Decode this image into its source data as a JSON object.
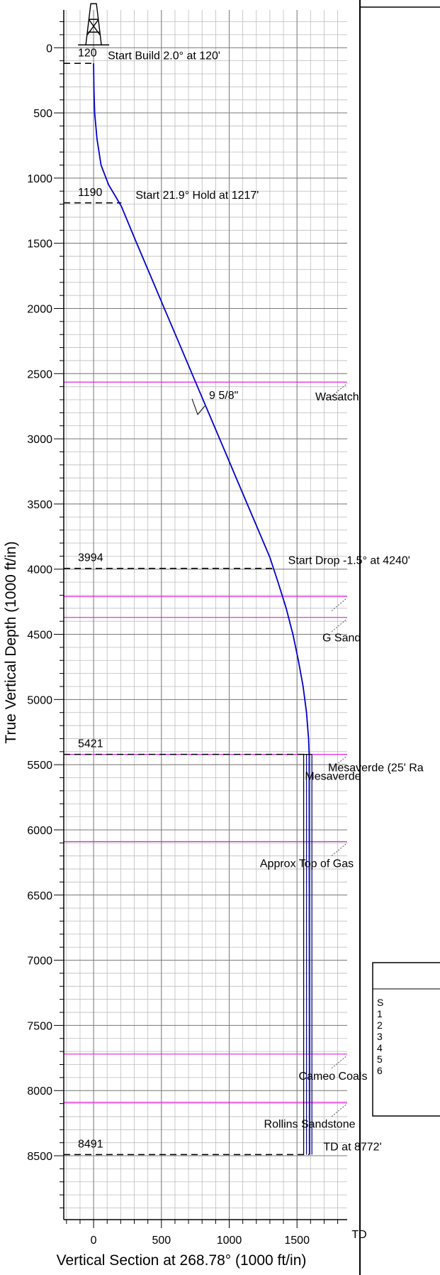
{
  "chart_data": {
    "type": "line",
    "title": "",
    "xlabel": "Vertical Section at 268.78° (1000 ft/in)",
    "ylabel": "True Vertical Depth (1000 ft/in)",
    "xlim": [
      -220,
      1870
    ],
    "ylim": [
      -290,
      8990
    ],
    "y_inverted": true,
    "grid": true,
    "x_ticks": [
      0,
      500,
      1000,
      1500
    ],
    "y_ticks": [
      0,
      500,
      1000,
      1500,
      2000,
      2500,
      3000,
      3500,
      4000,
      4500,
      5000,
      5500,
      6000,
      6500,
      7000,
      7500,
      8000,
      8500
    ],
    "well_path": {
      "color": "#0000cc",
      "vs": [
        0,
        2,
        8,
        25,
        55,
        110,
        205,
        310,
        420,
        530,
        640,
        750,
        860,
        970,
        1080,
        1190,
        1300,
        1360,
        1420,
        1470,
        1510,
        1545,
        1570,
        1585,
        1590,
        1592
      ],
      "tvd": [
        120,
        300,
        500,
        700,
        900,
        1050,
        1217,
        1480,
        1750,
        2020,
        2290,
        2560,
        2830,
        3100,
        3370,
        3640,
        3910,
        4100,
        4300,
        4500,
        4700,
        4900,
        5100,
        5300,
        5421,
        8491
      ]
    },
    "casing_lines": {
      "color": "#000080",
      "vs": [
        1570,
        1610
      ],
      "tvd_top": 5421,
      "tvd_bottom": 8491
    },
    "plan_points": [
      {
        "tvd": 120,
        "vs": 0,
        "label": "120",
        "text": "Start Build 2.0° at 120'"
      },
      {
        "tvd": 1190,
        "vs": 205,
        "label": "1190",
        "text": "Start 21.9° Hold at 1217'"
      },
      {
        "tvd": 3994,
        "vs": 1330,
        "label": "3994",
        "text": "Start Drop -1.5° at 4240'"
      },
      {
        "tvd": 5421,
        "vs": 1590,
        "label": "5421",
        "text": ""
      },
      {
        "tvd": 8491,
        "vs": 1590,
        "label": "8491",
        "text": "TD at 8772'"
      }
    ],
    "formations": [
      {
        "tvd": 2565,
        "label": "Wasatch"
      },
      {
        "tvd": 4210,
        "label": ""
      },
      {
        "tvd": 4370,
        "label": "G Sand"
      },
      {
        "tvd": 5421,
        "label": "Mesaverde (25' Ra"
      },
      {
        "tvd": 5421,
        "label": "Mesaverde"
      },
      {
        "tvd": 6090,
        "label": "Approx Top of Gas"
      },
      {
        "tvd": 7720,
        "label": "Cameo Coals"
      },
      {
        "tvd": 8090,
        "label": "Rollins Sandstone"
      }
    ],
    "casing_shoe": {
      "tvd": 2770,
      "vs": 820,
      "label": "9 5/8\""
    },
    "td_label": "TD"
  },
  "side_panel": {
    "table_first_column": [
      "S",
      "1",
      "2",
      "3",
      "4",
      "5",
      "6"
    ]
  }
}
